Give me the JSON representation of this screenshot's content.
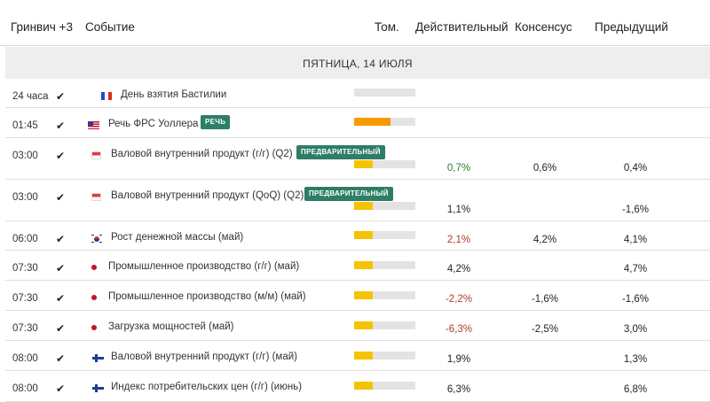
{
  "header": {
    "timezone": "Гринвич +3",
    "event": "Событие",
    "volume": "Том.",
    "actual": "Действительный",
    "consensus": "Консенсус",
    "previous": "Предыдущий"
  },
  "day_label": "ПЯТНИЦА, 14 ИЮЛЯ",
  "colors": {
    "volume_high": "#f59b00",
    "volume_medium": "#f6c300",
    "volume_empty": "#e3e3e3",
    "badge": "#2e7d67",
    "negative": "#b03a2e",
    "neutral": "#222222"
  },
  "rows": [
    {
      "time": "24 часа",
      "flag": "france-flag-icon",
      "event": "День взятия Бастилии",
      "badge": "",
      "volume": 0,
      "actual": "",
      "actual_status": "neutral",
      "consensus": "",
      "previous": ""
    },
    {
      "time": "01:45",
      "flag": "usa-flag-icon",
      "event": "Речь ФРС Уоллера",
      "badge": "РЕЧЬ",
      "volume": 0.6,
      "actual": "",
      "actual_status": "neutral",
      "consensus": "",
      "previous": ""
    },
    {
      "time": "03:00",
      "flag": "singapore-flag-icon",
      "event": "Валовой внутренний продукт (г/г) (Q2)",
      "badge": "ПРЕДВАРИТЕЛЬНЫЙ",
      "volume": 0.3,
      "actual": "0,7%",
      "actual_status": "positive",
      "consensus": "0,6%",
      "previous": "0,4%"
    },
    {
      "time": "03:00",
      "flag": "singapore-flag-icon",
      "event": "Валовой внутренний продукт (QoQ) (Q2)",
      "badge": "ПРЕДВАРИТЕЛЬНЫЙ",
      "volume": 0.3,
      "actual": "1,1%",
      "actual_status": "neutral",
      "consensus": "",
      "previous": "-1,6%"
    },
    {
      "time": "06:00",
      "flag": "south-korea-flag-icon",
      "event": "Рост денежной массы (май)",
      "badge": "",
      "volume": 0.3,
      "actual": "2,1%",
      "actual_status": "negative",
      "consensus": "4,2%",
      "previous": "4,1%"
    },
    {
      "time": "07:30",
      "flag": "japan-flag-icon",
      "event": "Промышленное производство (г/г) (май)",
      "badge": "",
      "volume": 0.3,
      "actual": "4,2%",
      "actual_status": "neutral",
      "consensus": "",
      "previous": "4,7%"
    },
    {
      "time": "07:30",
      "flag": "japan-flag-icon",
      "event": "Промышленное производство (м/м) (май)",
      "badge": "",
      "volume": 0.3,
      "actual": "-2,2%",
      "actual_status": "negative",
      "consensus": "-1,6%",
      "previous": "-1,6%"
    },
    {
      "time": "07:30",
      "flag": "japan-flag-icon",
      "event": "Загрузка мощностей (май)",
      "badge": "",
      "volume": 0.3,
      "actual": "-6,3%",
      "actual_status": "negative",
      "consensus": "-2,5%",
      "previous": "3,0%"
    },
    {
      "time": "08:00",
      "flag": "finland-flag-icon",
      "event": "Валовой внутренний продукт (г/г) (май)",
      "badge": "",
      "volume": 0.3,
      "actual": "1,9%",
      "actual_status": "neutral",
      "consensus": "",
      "previous": "1,3%"
    },
    {
      "time": "08:00",
      "flag": "finland-flag-icon",
      "event": "Индекс потребительских цен (г/г) (июнь)",
      "badge": "",
      "volume": 0.3,
      "actual": "6,3%",
      "actual_status": "neutral",
      "consensus": "",
      "previous": "6,8%"
    }
  ]
}
